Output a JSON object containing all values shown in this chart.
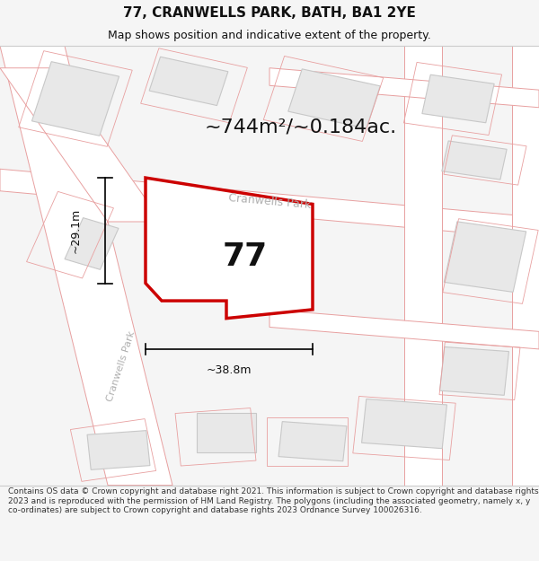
{
  "title": "77, CRANWELLS PARK, BATH, BA1 2YE",
  "subtitle": "Map shows position and indicative extent of the property.",
  "area_text": "~744m²/~0.184ac.",
  "property_number": "77",
  "dim_width": "~38.8m",
  "dim_height": "~29.1m",
  "road_label_diag": "Cranwells Park",
  "road_label_vert": "Cranwells Park",
  "footer": "Contains OS data © Crown copyright and database right 2021. This information is subject to Crown copyright and database rights 2023 and is reproduced with the permission of HM Land Registry. The polygons (including the associated geometry, namely x, y co-ordinates) are subject to Crown copyright and database rights 2023 Ordnance Survey 100026316.",
  "bg_color": "#f5f5f5",
  "map_bg": "#ffffff",
  "road_color": "#f5c0c0",
  "road_line_color": "#e8a0a0",
  "highlight_color": "#cc0000",
  "building_fill": "#e8e8e8",
  "building_edge": "#c8c8c8",
  "parcel_edge": "#e8a0a0",
  "text_color": "#111111",
  "road_text_color": "#b0b0b0",
  "footer_color": "#333333",
  "title_fontsize": 11,
  "subtitle_fontsize": 9,
  "area_fontsize": 16,
  "prop_fontsize": 26,
  "dim_fontsize": 9,
  "road_label_fontsize": 9,
  "footer_fontsize": 6.5
}
